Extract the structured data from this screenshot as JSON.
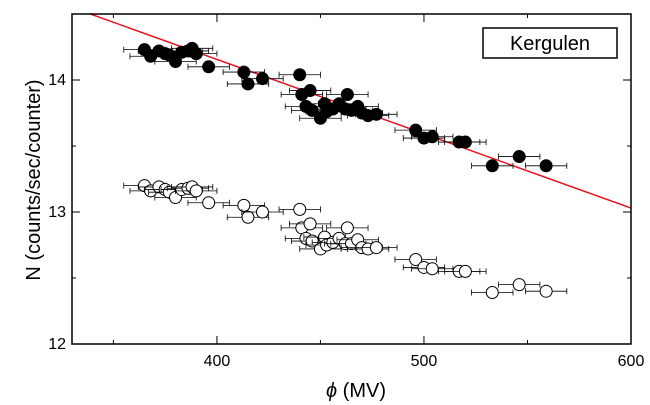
{
  "chart_data": {
    "type": "scatter",
    "title": "",
    "legend_label": "Kergulen",
    "legend_position": "top-right",
    "xlabel_symbol": "ϕ",
    "xlabel_unit": "(MV)",
    "ylabel": "N (counts/sec/counter)",
    "xlim": [
      330,
      600
    ],
    "ylim": [
      12,
      14.5
    ],
    "x_ticks": [
      400,
      500,
      600
    ],
    "x_tick_labels": [
      "400",
      "500",
      "600"
    ],
    "y_ticks": [
      12,
      13,
      14
    ],
    "y_tick_labels": [
      "12",
      "13",
      "14"
    ],
    "grid": false,
    "colors": {
      "fit_line": "#e8141e",
      "filled_marker": "#000000",
      "open_marker_fill": "#ffffff",
      "axes": "#000000"
    },
    "fit_line": {
      "x": [
        330,
        600
      ],
      "y": [
        14.55,
        13.03
      ]
    },
    "series": [
      {
        "marker": "filled-circle",
        "x": [
          365,
          368,
          372,
          375,
          377,
          380,
          383,
          386,
          388,
          390,
          396,
          413,
          415,
          422,
          440,
          441,
          443,
          445,
          446,
          450,
          452,
          453,
          456,
          459,
          462,
          463,
          465,
          468,
          470,
          473,
          477,
          496,
          500,
          504,
          517,
          520,
          533,
          546,
          559
        ],
        "y": [
          14.23,
          14.18,
          14.22,
          14.2,
          14.19,
          14.14,
          14.21,
          14.22,
          14.24,
          14.2,
          14.1,
          14.06,
          13.97,
          14.01,
          14.04,
          13.89,
          13.8,
          13.92,
          13.77,
          13.71,
          13.82,
          13.76,
          13.78,
          13.82,
          13.78,
          13.89,
          13.77,
          13.8,
          13.75,
          13.73,
          13.74,
          13.62,
          13.56,
          13.57,
          13.53,
          13.53,
          13.35,
          13.42,
          13.35
        ],
        "x_error": 10
      },
      {
        "marker": "open-circle",
        "x": [
          365,
          368,
          372,
          375,
          377,
          380,
          383,
          386,
          388,
          390,
          396,
          413,
          415,
          422,
          440,
          441,
          443,
          445,
          446,
          450,
          452,
          453,
          456,
          459,
          462,
          463,
          465,
          468,
          470,
          473,
          477,
          496,
          500,
          504,
          517,
          520,
          533,
          546,
          559
        ],
        "y": [
          13.2,
          13.16,
          13.19,
          13.17,
          13.15,
          13.11,
          13.17,
          13.18,
          13.19,
          13.16,
          13.07,
          13.05,
          12.96,
          13.0,
          13.02,
          12.88,
          12.8,
          12.91,
          12.78,
          12.72,
          12.81,
          12.75,
          12.77,
          12.8,
          12.76,
          12.88,
          12.76,
          12.79,
          12.73,
          12.72,
          12.73,
          12.64,
          12.58,
          12.57,
          12.55,
          12.55,
          12.39,
          12.45,
          12.4
        ],
        "x_error": 10
      }
    ]
  }
}
